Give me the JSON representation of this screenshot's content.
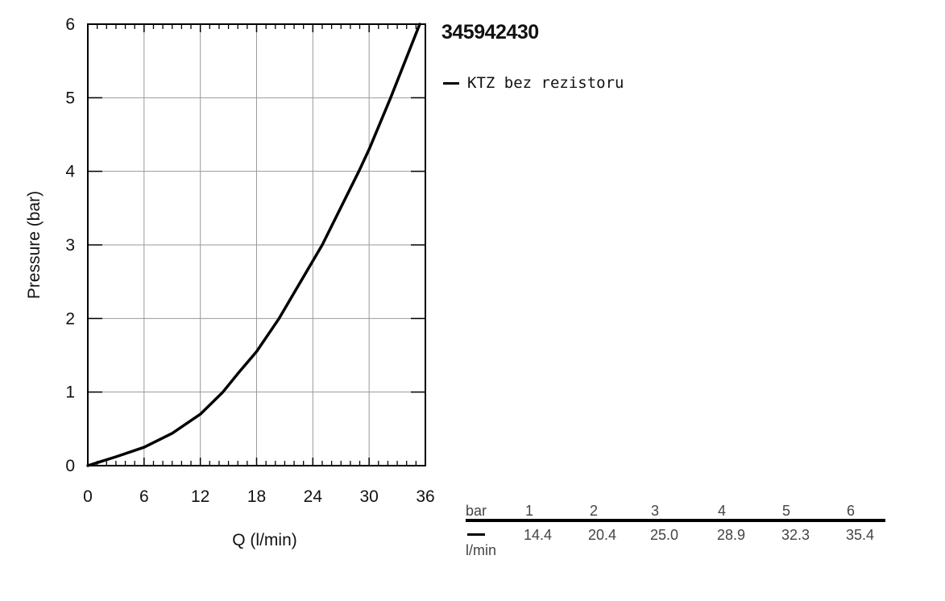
{
  "chart_data": {
    "type": "line",
    "title": "345942430",
    "xlabel": "Q (l/min)",
    "ylabel": "Pressure (bar)",
    "xlim": [
      0,
      36
    ],
    "ylim": [
      0,
      6
    ],
    "xticks": [
      "0",
      "6",
      "12",
      "18",
      "24",
      "30",
      "36"
    ],
    "yticks": [
      "0",
      "1",
      "2",
      "3",
      "4",
      "5",
      "6"
    ],
    "grid": true,
    "legend_position": "top-right, outside plot",
    "series": [
      {
        "name": "KTZ bez rezistoru",
        "color": "#000000",
        "x": [
          0,
          3,
          6,
          9,
          12,
          14.4,
          16,
          18,
          20.4,
          22,
          25.0,
          28.9,
          30,
          32.3,
          35.4
        ],
        "y": [
          0,
          0.12,
          0.25,
          0.44,
          0.7,
          1.0,
          1.25,
          1.55,
          2.0,
          2.35,
          3.0,
          4.0,
          4.3,
          5.0,
          6.0
        ]
      }
    ]
  },
  "table": {
    "pressure_unit": "bar",
    "flow_unit": "l/min",
    "pressures": [
      "1",
      "2",
      "3",
      "4",
      "5",
      "6"
    ],
    "flows": [
      "14.4",
      "20.4",
      "25.0",
      "28.9",
      "32.3",
      "35.4"
    ]
  }
}
